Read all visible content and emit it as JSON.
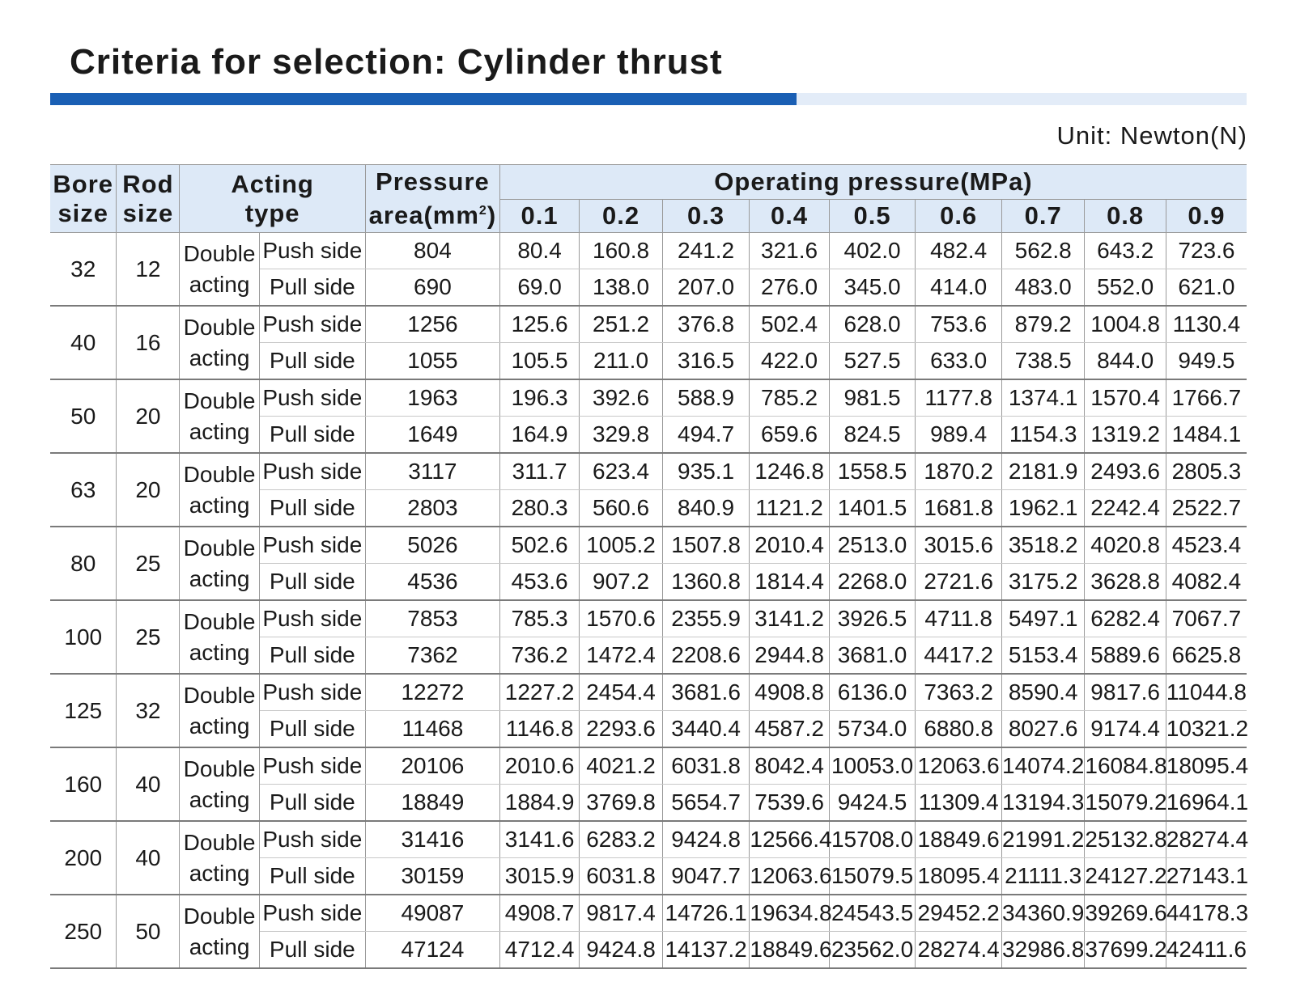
{
  "title": "Criteria for selection: Cylinder thrust",
  "unit": "Unit: Newton(N)",
  "headers": {
    "bore": [
      "Bore",
      "size"
    ],
    "rod": [
      "Rod",
      "size"
    ],
    "acting": [
      "Acting",
      "type"
    ],
    "area": [
      "Pressure",
      "area(mm",
      "2",
      ")"
    ],
    "operating": "Operating pressure(MPa)",
    "pressures": [
      "0.1",
      "0.2",
      "0.3",
      "0.4",
      "0.5",
      "0.6",
      "0.7",
      "0.8",
      "0.9"
    ]
  },
  "acting_label": [
    "Double",
    "acting"
  ],
  "groups": [
    {
      "bore": "32",
      "rod": "12",
      "rows": [
        {
          "side": "Push side",
          "area": "804",
          "values": [
            "80.4",
            "160.8",
            "241.2",
            "321.6",
            "402.0",
            "482.4",
            "562.8",
            "643.2",
            "723.6"
          ]
        },
        {
          "side": "Pull side",
          "area": "690",
          "values": [
            "69.0",
            "138.0",
            "207.0",
            "276.0",
            "345.0",
            "414.0",
            "483.0",
            "552.0",
            "621.0"
          ]
        }
      ]
    },
    {
      "bore": "40",
      "rod": "16",
      "rows": [
        {
          "side": "Push side",
          "area": "1256",
          "values": [
            "125.6",
            "251.2",
            "376.8",
            "502.4",
            "628.0",
            "753.6",
            "879.2",
            "1004.8",
            "1130.4"
          ]
        },
        {
          "side": "Pull side",
          "area": "1055",
          "values": [
            "105.5",
            "211.0",
            "316.5",
            "422.0",
            "527.5",
            "633.0",
            "738.5",
            "844.0",
            "949.5"
          ]
        }
      ]
    },
    {
      "bore": "50",
      "rod": "20",
      "rows": [
        {
          "side": "Push side",
          "area": "1963",
          "values": [
            "196.3",
            "392.6",
            "588.9",
            "785.2",
            "981.5",
            "1177.8",
            "1374.1",
            "1570.4",
            "1766.7"
          ]
        },
        {
          "side": "Pull side",
          "area": "1649",
          "values": [
            "164.9",
            "329.8",
            "494.7",
            "659.6",
            "824.5",
            "989.4",
            "1154.3",
            "1319.2",
            "1484.1"
          ]
        }
      ]
    },
    {
      "bore": "63",
      "rod": "20",
      "rows": [
        {
          "side": "Push side",
          "area": "3117",
          "values": [
            "311.7",
            "623.4",
            "935.1",
            "1246.8",
            "1558.5",
            "1870.2",
            "2181.9",
            "2493.6",
            "2805.3"
          ]
        },
        {
          "side": "Pull side",
          "area": "2803",
          "values": [
            "280.3",
            "560.6",
            "840.9",
            "1121.2",
            "1401.5",
            "1681.8",
            "1962.1",
            "2242.4",
            "2522.7"
          ]
        }
      ]
    },
    {
      "bore": "80",
      "rod": "25",
      "rows": [
        {
          "side": "Push side",
          "area": "5026",
          "values": [
            "502.6",
            "1005.2",
            "1507.8",
            "2010.4",
            "2513.0",
            "3015.6",
            "3518.2",
            "4020.8",
            "4523.4"
          ]
        },
        {
          "side": "Pull side",
          "area": "4536",
          "values": [
            "453.6",
            "907.2",
            "1360.8",
            "1814.4",
            "2268.0",
            "2721.6",
            "3175.2",
            "3628.8",
            "4082.4"
          ]
        }
      ]
    },
    {
      "bore": "100",
      "rod": "25",
      "rows": [
        {
          "side": "Push side",
          "area": "7853",
          "values": [
            "785.3",
            "1570.6",
            "2355.9",
            "3141.2",
            "3926.5",
            "4711.8",
            "5497.1",
            "6282.4",
            "7067.7"
          ]
        },
        {
          "side": "Pull side",
          "area": "7362",
          "values": [
            "736.2",
            "1472.4",
            "2208.6",
            "2944.8",
            "3681.0",
            "4417.2",
            "5153.4",
            "5889.6",
            "6625.8"
          ]
        }
      ]
    },
    {
      "bore": "125",
      "rod": "32",
      "rows": [
        {
          "side": "Push side",
          "area": "12272",
          "values": [
            "1227.2",
            "2454.4",
            "3681.6",
            "4908.8",
            "6136.0",
            "7363.2",
            "8590.4",
            "9817.6",
            "11044.8"
          ]
        },
        {
          "side": "Pull side",
          "area": "11468",
          "values": [
            "1146.8",
            "2293.6",
            "3440.4",
            "4587.2",
            "5734.0",
            "6880.8",
            "8027.6",
            "9174.4",
            "10321.2"
          ]
        }
      ]
    },
    {
      "bore": "160",
      "rod": "40",
      "rows": [
        {
          "side": "Push side",
          "area": "20106",
          "values": [
            "2010.6",
            "4021.2",
            "6031.8",
            "8042.4",
            "10053.0",
            "12063.6",
            "14074.2",
            "16084.8",
            "18095.4"
          ]
        },
        {
          "side": "Pull side",
          "area": "18849",
          "values": [
            "1884.9",
            "3769.8",
            "5654.7",
            "7539.6",
            "9424.5",
            "11309.4",
            "13194.3",
            "15079.2",
            "16964.1"
          ]
        }
      ]
    },
    {
      "bore": "200",
      "rod": "40",
      "rows": [
        {
          "side": "Push side",
          "area": "31416",
          "values": [
            "3141.6",
            "6283.2",
            "9424.8",
            "12566.4",
            "15708.0",
            "18849.6",
            "21991.2",
            "25132.8",
            "28274.4"
          ]
        },
        {
          "side": "Pull side",
          "area": "30159",
          "values": [
            "3015.9",
            "6031.8",
            "9047.7",
            "12063.6",
            "15079.5",
            "18095.4",
            "21111.3",
            "24127.2",
            "27143.1"
          ]
        }
      ]
    },
    {
      "bore": "250",
      "rod": "50",
      "rows": [
        {
          "side": "Push side",
          "area": "49087",
          "values": [
            "4908.7",
            "9817.4",
            "14726.1",
            "19634.8",
            "24543.5",
            "29452.2",
            "34360.9",
            "39269.6",
            "44178.3"
          ]
        },
        {
          "side": "Pull side",
          "area": "47124",
          "values": [
            "4712.4",
            "9424.8",
            "14137.2",
            "18849.6",
            "23562.0",
            "28274.4",
            "32986.8",
            "37699.2",
            "42411.6"
          ]
        }
      ]
    }
  ],
  "colors": {
    "accent_bar": "#1a5fb4",
    "accent_bar_light": "#e3ecf8",
    "header_bg": "#dde9f7"
  }
}
